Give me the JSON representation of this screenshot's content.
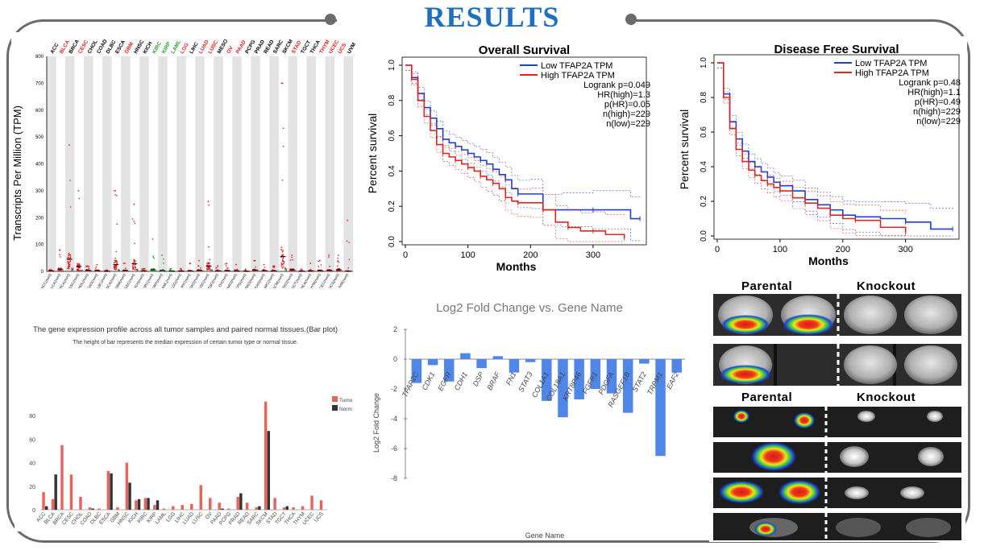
{
  "page_title": "RESULTS",
  "panels": {
    "tcga_dot": {
      "ylabel": "Transcripts Per Million (TPM)",
      "yticks": [
        "0",
        "100",
        "200",
        "300",
        "400",
        "500",
        "600",
        "700",
        "800"
      ],
      "cancers": [
        {
          "name": "ACC",
          "color": "#000000"
        },
        {
          "name": "BLCA",
          "color": "#e41a1c"
        },
        {
          "name": "BRCA",
          "color": "#000000"
        },
        {
          "name": "CESC",
          "color": "#e41a1c"
        },
        {
          "name": "CHOL",
          "color": "#000000"
        },
        {
          "name": "COAD",
          "color": "#000000"
        },
        {
          "name": "DLBC",
          "color": "#000000"
        },
        {
          "name": "ESCA",
          "color": "#000000"
        },
        {
          "name": "GBM",
          "color": "#e41a1c"
        },
        {
          "name": "HNSC",
          "color": "#000000"
        },
        {
          "name": "KICH",
          "color": "#000000"
        },
        {
          "name": "KIRC",
          "color": "#2ca02c"
        },
        {
          "name": "KIRP",
          "color": "#2ca02c"
        },
        {
          "name": "LAML",
          "color": "#2ca02c"
        },
        {
          "name": "LGG",
          "color": "#e41a1c"
        },
        {
          "name": "LIHC",
          "color": "#000000"
        },
        {
          "name": "LUAD",
          "color": "#e41a1c"
        },
        {
          "name": "LUSC",
          "color": "#e41a1c"
        },
        {
          "name": "MESO",
          "color": "#000000"
        },
        {
          "name": "OV",
          "color": "#e41a1c"
        },
        {
          "name": "PAAD",
          "color": "#e41a1c"
        },
        {
          "name": "PCPG",
          "color": "#000000"
        },
        {
          "name": "PRAD",
          "color": "#000000"
        },
        {
          "name": "READ",
          "color": "#000000"
        },
        {
          "name": "SARC",
          "color": "#000000"
        },
        {
          "name": "SKCM",
          "color": "#000000"
        },
        {
          "name": "STAD",
          "color": "#e41a1c"
        },
        {
          "name": "TGCT",
          "color": "#000000"
        },
        {
          "name": "THCA",
          "color": "#000000"
        },
        {
          "name": "THYM",
          "color": "#e41a1c"
        },
        {
          "name": "UCEC",
          "color": "#e41a1c"
        },
        {
          "name": "UCS",
          "color": "#e41a1c"
        },
        {
          "name": "UVM",
          "color": "#000000"
        }
      ],
      "tumor_median": [
        2,
        8,
        45,
        18,
        4,
        3,
        1,
        25,
        3,
        28,
        2,
        6,
        3,
        1,
        1,
        2,
        4,
        20,
        2,
        3,
        2,
        1,
        5,
        3,
        2,
        55,
        6,
        1,
        2,
        3,
        4,
        6,
        1
      ],
      "tumor_max": [
        6,
        80,
        470,
        300,
        20,
        25,
        5,
        300,
        30,
        250,
        10,
        120,
        60,
        10,
        10,
        30,
        40,
        260,
        20,
        30,
        25,
        8,
        40,
        25,
        20,
        700,
        60,
        8,
        30,
        40,
        60,
        60,
        190
      ]
    },
    "os_km": {
      "title": "Overall Survival",
      "xlabel": "Months",
      "ylabel": "Percent survival",
      "xticks": [
        "0",
        "100",
        "200",
        "300"
      ],
      "yticks": [
        "0.0",
        "0.2",
        "0.4",
        "0.6",
        "0.8",
        "1.0"
      ],
      "legend_low": "Low TFAP2A TPM",
      "legend_high": "High TFAP2A TPM",
      "stats": [
        "Logrank p=0.049",
        "HR(high)=1.3",
        "p(HR)=0.05",
        "n(high)=229",
        "n(low)=229"
      ]
    },
    "dfs_km": {
      "title": "Disease Free Survival",
      "xlabel": "Months",
      "ylabel": "Percent survival",
      "xticks": [
        "0",
        "100",
        "200",
        "300"
      ],
      "yticks": [
        "0.0",
        "0.2",
        "0.4",
        "0.6",
        "0.8",
        "1.0"
      ],
      "legend_low": "Low TFAP2A TPM",
      "legend_high": "High TFAP2A TPM",
      "stats": [
        "Logrank p=0.48",
        "HR(high)=1.1",
        "p(HR)=0.49",
        "n(high)=229",
        "n(low)=229"
      ]
    },
    "bar_profile": {
      "title": "The gene expression profile across all tumor samples and paired normal tissues.(Bar plot)",
      "subtitle": "The height of bar represents the median expression of certain tumor type or normal tissue.",
      "legend_tumor": "Tumo",
      "legend_normal": "Norm",
      "yticks": [
        "0",
        "20",
        "40",
        "60",
        "80"
      ]
    },
    "fold_change": {
      "title": "Log2 Fold Change vs. Gene Name",
      "xlabel": "Gene Name",
      "ylabel": "Log2 Fold Change",
      "yticks": [
        "2",
        "0",
        "-2",
        "-4",
        "-6",
        "-8"
      ]
    },
    "imaging": {
      "parental_label": "Parental",
      "knockout_label": "Knockout"
    }
  },
  "chart_data": [
    {
      "type": "scatter",
      "title": "",
      "ylabel": "Transcripts Per Million (TPM)",
      "ylim": [
        0,
        800
      ],
      "categories": [
        "ACC",
        "BLCA",
        "BRCA",
        "CESC",
        "CHOL",
        "COAD",
        "DLBC",
        "ESCA",
        "GBM",
        "HNSC",
        "KICH",
        "KIRC",
        "KIRP",
        "LAML",
        "LGG",
        "LIHC",
        "LUAD",
        "LUSC",
        "MESO",
        "OV",
        "PAAD",
        "PCPG",
        "PRAD",
        "READ",
        "SARC",
        "SKCM",
        "STAD",
        "TGCT",
        "THCA",
        "THYM",
        "UCEC",
        "UCS",
        "UVM"
      ]
    },
    {
      "type": "line",
      "title": "Overall Survival",
      "xlabel": "Months",
      "ylabel": "Percent survival",
      "xlim": [
        0,
        380
      ],
      "ylim": [
        0,
        1.0
      ],
      "series": [
        {
          "name": "Low TFAP2A TPM",
          "color": "#1f3fcf",
          "x": [
            0,
            10,
            20,
            30,
            40,
            50,
            60,
            70,
            80,
            90,
            100,
            110,
            120,
            130,
            140,
            150,
            160,
            170,
            180,
            200,
            220,
            250,
            300,
            360,
            375
          ],
          "y": [
            1.0,
            0.93,
            0.84,
            0.76,
            0.7,
            0.64,
            0.58,
            0.56,
            0.54,
            0.52,
            0.5,
            0.48,
            0.46,
            0.44,
            0.41,
            0.38,
            0.35,
            0.3,
            0.27,
            0.27,
            0.18,
            0.18,
            0.18,
            0.13,
            0.13
          ]
        },
        {
          "name": "High TFAP2A TPM",
          "color": "#e0261f",
          "x": [
            0,
            10,
            20,
            30,
            40,
            50,
            60,
            70,
            80,
            90,
            100,
            110,
            120,
            130,
            140,
            150,
            160,
            170,
            180,
            200,
            220,
            240,
            260,
            280,
            300,
            320,
            350
          ],
          "y": [
            1.0,
            0.92,
            0.8,
            0.71,
            0.63,
            0.55,
            0.5,
            0.48,
            0.46,
            0.44,
            0.42,
            0.4,
            0.37,
            0.35,
            0.33,
            0.3,
            0.25,
            0.23,
            0.22,
            0.22,
            0.18,
            0.11,
            0.08,
            0.06,
            0.06,
            0.04,
            0.02
          ]
        }
      ]
    },
    {
      "type": "line",
      "title": "Disease Free Survival",
      "xlabel": "Months",
      "ylabel": "Percent survival",
      "xlim": [
        0,
        380
      ],
      "ylim": [
        0,
        1.0
      ],
      "series": [
        {
          "name": "Low TFAP2A TPM",
          "color": "#1f3fcf",
          "x": [
            0,
            10,
            20,
            30,
            40,
            50,
            60,
            70,
            80,
            90,
            100,
            120,
            140,
            160,
            180,
            200,
            220,
            260,
            300,
            340,
            375
          ],
          "y": [
            1.0,
            0.82,
            0.66,
            0.56,
            0.49,
            0.43,
            0.4,
            0.37,
            0.34,
            0.31,
            0.29,
            0.26,
            0.21,
            0.18,
            0.15,
            0.12,
            0.11,
            0.1,
            0.08,
            0.04,
            0.04
          ]
        },
        {
          "name": "High TFAP2A TPM",
          "color": "#e0261f",
          "x": [
            0,
            10,
            20,
            30,
            40,
            50,
            60,
            70,
            80,
            90,
            100,
            120,
            140,
            160,
            180,
            200,
            220,
            260,
            300
          ],
          "y": [
            1.0,
            0.8,
            0.62,
            0.5,
            0.43,
            0.38,
            0.35,
            0.32,
            0.3,
            0.28,
            0.26,
            0.22,
            0.19,
            0.16,
            0.12,
            0.1,
            0.09,
            0.05,
            0.02
          ]
        }
      ]
    },
    {
      "type": "bar",
      "title": "The gene expression profile across all tumor samples and paired normal tissues.(Bar plot)",
      "ylim": [
        0,
        100
      ],
      "categories": [
        "ACC",
        "BLCA",
        "BRCA",
        "CESC",
        "CHOL",
        "COAD",
        "DLBC",
        "ESCA",
        "GBM",
        "HNSC",
        "KICH",
        "KIRC",
        "KIRP",
        "LAML",
        "LGG",
        "LIHC",
        "LUAD",
        "LUSC",
        "OV",
        "PAAD",
        "PCPG",
        "PRAD",
        "READ",
        "SARC",
        "SKCM",
        "STAD",
        "TGCT",
        "THCA",
        "THYM",
        "UCEC",
        "UCS"
      ],
      "series": [
        {
          "name": "Tumo",
          "color": "#e8645a",
          "values": [
            15,
            9,
            55,
            30,
            11,
            2,
            1,
            33,
            2,
            40,
            8,
            10,
            4,
            1,
            3,
            4,
            5,
            21,
            10,
            6,
            1,
            11,
            6,
            2,
            92,
            10,
            2,
            2,
            3,
            12,
            8
          ]
        },
        {
          "name": "Norm",
          "color": "#333333",
          "values": [
            3,
            30,
            0,
            0,
            0,
            1,
            0,
            31,
            0,
            23,
            9,
            10,
            8,
            0,
            0,
            0,
            0,
            0,
            0,
            1,
            0,
            14,
            0,
            3,
            67,
            0,
            3,
            0,
            0,
            0,
            0
          ]
        }
      ]
    },
    {
      "type": "bar",
      "title": "Log2 Fold Change vs. Gene Name",
      "xlabel": "Gene Name",
      "ylabel": "Log2 Fold Change",
      "ylim": [
        -8,
        2
      ],
      "categories": [
        "TFAP2C",
        "CDK1",
        "EGFR",
        "CDH1",
        "DSP",
        "BRAF",
        "FN1",
        "STAT3",
        "COL1A1",
        "COL18A1",
        "KRT8P46",
        "FGFR1",
        "PDGFA",
        "RASGEF1B",
        "STAT2",
        "TRPM1",
        "EAF2"
      ],
      "values": [
        -1.6,
        -0.4,
        -1.5,
        0.4,
        -0.6,
        0.2,
        -0.9,
        -0.2,
        -2.8,
        -3.9,
        -2.7,
        -2.0,
        -2.3,
        -3.6,
        -0.3,
        -6.5,
        -0.9
      ]
    }
  ]
}
